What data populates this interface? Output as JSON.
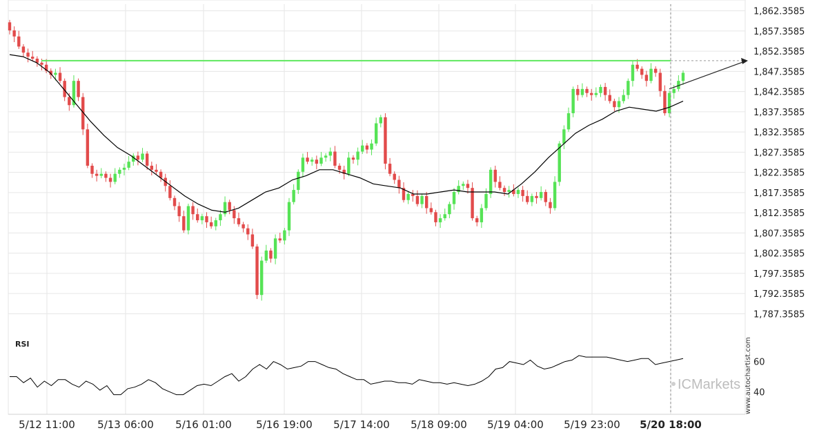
{
  "chart_data": {
    "type": "candlestick",
    "price_axis": {
      "ylim": [
        1784.0,
        1864.0
      ],
      "ticks": [
        "1,862.3585",
        "1,857.3585",
        "1,852.3585",
        "1,847.3585",
        "1,842.3585",
        "1,837.3585",
        "1,832.3585",
        "1,827.3585",
        "1,822.3585",
        "1,817.3585",
        "1,812.3585",
        "1,807.3585",
        "1,802.3585",
        "1,797.3585",
        "1,792.3585",
        "1,787.3585"
      ],
      "tick_values": [
        1862.3585,
        1857.3585,
        1852.3585,
        1847.3585,
        1842.3585,
        1837.3585,
        1832.3585,
        1827.3585,
        1822.3585,
        1817.3585,
        1812.3585,
        1807.3585,
        1802.3585,
        1797.3585,
        1792.3585,
        1787.3585
      ]
    },
    "x_ticks": [
      "5/12 11:00",
      "5/13 06:00",
      "5/16 01:00",
      "5/16 19:00",
      "5/17 14:00",
      "5/18 09:00",
      "5/19 04:00",
      "5/19 23:00",
      "5/20 18:00"
    ],
    "x_tick_highlight_index": 8,
    "resistance_level": 1850.0,
    "projection": {
      "from": 1843.0,
      "to": 1850.0
    },
    "candle_closes": [
      1857.5,
      1856.0,
      1853.5,
      1852.0,
      1851.0,
      1850.5,
      1849.5,
      1849.0,
      1847.5,
      1846.5,
      1847.0,
      1845.0,
      1841.0,
      1839.0,
      1845.0,
      1841.0,
      1833.0,
      1824.0,
      1822.0,
      1821.5,
      1822.0,
      1821.0,
      1820.0,
      1822.0,
      1823.0,
      1823.5,
      1825.0,
      1826.5,
      1825.5,
      1827.0,
      1824.0,
      1823.0,
      1822.5,
      1821.0,
      1819.0,
      1816.0,
      1814.0,
      1811.5,
      1808.0,
      1814.0,
      1812.0,
      1810.5,
      1811.5,
      1810.0,
      1809.0,
      1810.5,
      1812.0,
      1815.0,
      1813.0,
      1811.0,
      1809.5,
      1808.5,
      1807.0,
      1804.0,
      1792.0,
      1800.5,
      1803.0,
      1801.0,
      1806.0,
      1805.5,
      1808.0,
      1815.0,
      1818.0,
      1822.5,
      1826.0,
      1825.0,
      1825.5,
      1824.5,
      1826.0,
      1826.5,
      1827.5,
      1824.0,
      1823.0,
      1822.0,
      1826.0,
      1825.5,
      1827.5,
      1829.0,
      1828.0,
      1829.5,
      1834.5,
      1836.0,
      1824.5,
      1822.0,
      1820.5,
      1818.5,
      1815.5,
      1817.0,
      1816.5,
      1814.5,
      1816.5,
      1813.5,
      1812.5,
      1810.0,
      1811.0,
      1812.0,
      1814.5,
      1817.5,
      1819.0,
      1819.5,
      1818.5,
      1811.0,
      1810.0,
      1813.5,
      1817.0,
      1823.0,
      1820.0,
      1818.5,
      1817.5,
      1818.0,
      1817.0,
      1818.0,
      1816.5,
      1815.0,
      1816.5,
      1816.0,
      1817.5,
      1815.0,
      1813.5,
      1820.0,
      1829.5,
      1833.0,
      1837.0,
      1843.0,
      1841.5,
      1843.0,
      1842.0,
      1841.5,
      1842.0,
      1843.5,
      1841.5,
      1840.0,
      1838.5,
      1840.0,
      1841.5,
      1845.0,
      1849.0,
      1848.0,
      1846.5,
      1845.0,
      1848.0,
      1847.0,
      1842.5,
      1837.0,
      1842.0,
      1843.0,
      1845.0,
      1847.0
    ],
    "ma_path": [
      1851.5,
      1851.0,
      1849.5,
      1847.0,
      1843.0,
      1839.0,
      1835.0,
      1831.5,
      1828.5,
      1826.5,
      1824.0,
      1821.5,
      1819.0,
      1816.5,
      1814.5,
      1813.0,
      1812.5,
      1813.5,
      1815.5,
      1817.5,
      1818.5,
      1820.5,
      1821.5,
      1823.0,
      1823.0,
      1822.0,
      1821.0,
      1819.5,
      1819.0,
      1818.5,
      1817.0,
      1817.0,
      1817.5,
      1818.0,
      1817.5,
      1817.5,
      1817.5,
      1817.0,
      1819.5,
      1822.5,
      1826.0,
      1829.0,
      1832.0,
      1834.0,
      1835.5,
      1837.5,
      1838.5,
      1838.0,
      1837.5,
      1838.5,
      1840.0
    ],
    "rsi": {
      "label": "RSI",
      "ticks": [
        "60",
        "40"
      ],
      "tick_values": [
        60,
        40
      ],
      "ylim": [
        25,
        80
      ],
      "values": [
        50,
        50,
        46,
        49,
        43,
        47,
        44,
        48,
        48,
        45,
        43,
        47,
        45,
        41,
        44,
        38,
        38,
        42,
        43,
        45,
        48,
        46,
        42,
        40,
        38,
        38,
        41,
        44,
        45,
        44,
        47,
        50,
        52,
        47,
        50,
        55,
        58,
        55,
        60,
        58,
        55,
        56,
        57,
        60,
        60,
        58,
        56,
        55,
        52,
        50,
        48,
        48,
        45,
        46,
        47,
        47,
        46,
        46,
        45,
        48,
        47,
        46,
        46,
        45,
        46,
        45,
        44,
        45,
        47,
        50,
        55,
        56,
        60,
        59,
        58,
        61,
        57,
        55,
        56,
        58,
        60,
        61,
        64,
        63,
        63,
        63,
        63,
        62,
        61,
        60,
        61,
        62,
        62,
        58,
        59,
        60,
        61,
        62
      ]
    }
  },
  "labels": {
    "rsi": "RSI",
    "watermark": "www.autochartist.com",
    "brand": "ICMarkets"
  },
  "colors": {
    "bull": "#56e356",
    "bear": "#e24b4b",
    "ma": "#000000",
    "resistance": "#5de85d",
    "grid": "#e6e6e6",
    "axis": "#d0d0d0"
  }
}
